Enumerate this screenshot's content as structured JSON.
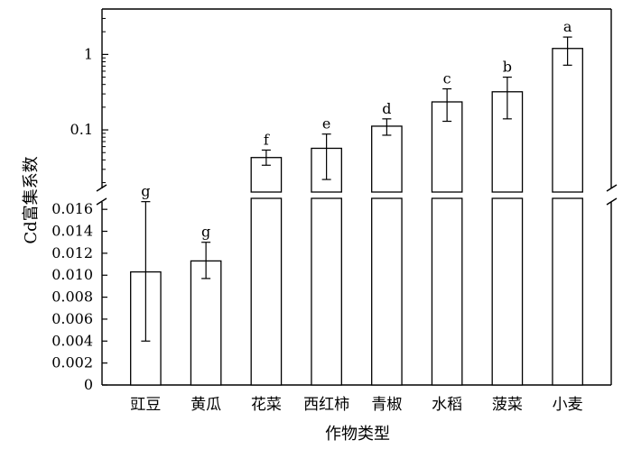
{
  "chart_data": {
    "type": "bar",
    "xlabel": "作物类型",
    "ylabel": "Cd富集系数",
    "axis_break": true,
    "scale_lower": "linear",
    "scale_upper": "log",
    "ylim_lower": [
      0,
      0.017
    ],
    "ylim_upper": [
      0.015,
      4
    ],
    "yticks_lower": [
      "0",
      "0.002",
      "0.004",
      "0.006",
      "0.008",
      "0.010",
      "0.012",
      "0.014",
      "0.016"
    ],
    "yticks_upper": [
      "0.1",
      "1"
    ],
    "categories": [
      "豇豆",
      "黄瓜",
      "花菜",
      "西红柿",
      "青椒",
      "水稻",
      "菠菜",
      "小麦"
    ],
    "values": [
      0.0103,
      0.0113,
      0.043,
      0.057,
      0.112,
      0.235,
      0.32,
      1.2
    ],
    "error_low": [
      0.004,
      0.0097,
      0.034,
      0.022,
      0.085,
      0.13,
      0.14,
      0.72
    ],
    "error_high": [
      0.0167,
      0.013,
      0.054,
      0.088,
      0.14,
      0.35,
      0.5,
      1.7
    ],
    "significance": [
      "g",
      "g",
      "f",
      "e",
      "d",
      "c",
      "b",
      "a"
    ],
    "bar_color": "#ffffff",
    "stroke_color": "#000000",
    "grid": false,
    "legend": "none"
  }
}
